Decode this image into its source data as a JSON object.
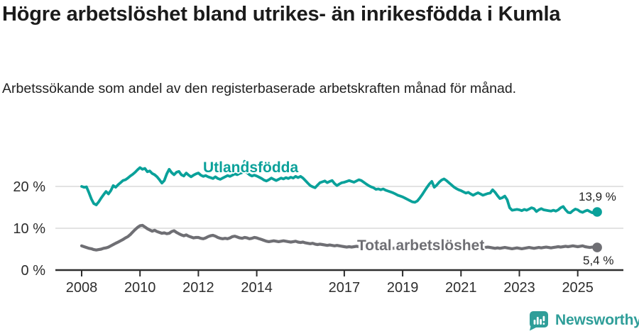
{
  "header": {
    "title": "Högre arbetslöshet bland utrikes- än inrikesfödda i Kumla",
    "subtitle": "Arbetssökande som andel av den registerbaserade arbetskraften månad för månad."
  },
  "footer": {
    "brand": "Newsworthy"
  },
  "colors": {
    "accent_teal": "#0aa19a",
    "series_gray": "#6f6f74",
    "gridline": "#dadada",
    "axis": "#2d2d2d",
    "tick_text": "#2d2d2d",
    "title_text": "#1b1b1b",
    "logo_teal": "#2f9e99"
  },
  "chart_data": {
    "type": "line",
    "title": "Högre arbetslöshet bland utrikes- än inrikesfödda i Kumla",
    "subtitle": "Arbetssökande som andel av den registerbaserade arbetskraften månad för månad.",
    "unit": "%",
    "x_start_year": 2008,
    "points_per_year": 12,
    "x_ticks": [
      2008,
      2010,
      2012,
      2014,
      2017,
      2019,
      2021,
      2023,
      2025
    ],
    "x_tick_labels": [
      "2008",
      "2010",
      "2012",
      "2014",
      "2017",
      "2019",
      "2021",
      "2023",
      "2025"
    ],
    "y_tick_values": [
      0,
      10,
      20
    ],
    "y_tick_labels": [
      "0 %",
      "10 %",
      "20 %"
    ],
    "ylim": [
      0,
      27
    ],
    "grid": "horizontal",
    "legend": "inline-labels",
    "series": [
      {
        "name": "Utlandsfödda",
        "color": "#0aa19a",
        "line_width": 3.8,
        "end_label": "13,9 %",
        "end_value": 13.9,
        "values": [
          20.0,
          19.8,
          19.9,
          18.5,
          17.0,
          15.9,
          15.6,
          16.3,
          17.2,
          18.0,
          18.8,
          18.2,
          19.0,
          20.2,
          19.8,
          20.4,
          20.9,
          21.4,
          21.6,
          22.0,
          22.5,
          22.9,
          23.4,
          24.0,
          24.5,
          24.1,
          24.3,
          23.5,
          23.7,
          23.1,
          22.8,
          22.3,
          21.6,
          20.8,
          21.4,
          23.0,
          24.1,
          23.3,
          22.8,
          23.4,
          23.6,
          22.8,
          22.5,
          23.2,
          22.7,
          22.3,
          22.7,
          23.0,
          23.2,
          22.7,
          22.4,
          22.6,
          22.3,
          22.1,
          21.9,
          22.3,
          21.9,
          21.7,
          22.0,
          22.3,
          22.6,
          22.4,
          22.7,
          23.0,
          22.8,
          23.1,
          23.3,
          26.0,
          23.3,
          22.8,
          22.5,
          22.7,
          22.5,
          22.2,
          21.9,
          21.5,
          21.3,
          21.6,
          22.0,
          21.7,
          21.4,
          21.7,
          22.0,
          21.8,
          22.1,
          21.9,
          22.2,
          22.0,
          22.4,
          22.1,
          22.4,
          22.0,
          21.4,
          20.8,
          20.2,
          19.9,
          19.7,
          20.3,
          20.9,
          21.1,
          21.3,
          20.9,
          21.2,
          21.4,
          20.7,
          20.2,
          20.6,
          20.9,
          21.0,
          21.2,
          21.4,
          21.2,
          21.0,
          21.3,
          21.6,
          21.4,
          21.0,
          20.6,
          20.2,
          19.9,
          19.7,
          19.3,
          19.4,
          19.2,
          19.4,
          19.1,
          18.9,
          18.7,
          18.5,
          18.2,
          17.9,
          17.7,
          17.5,
          17.2,
          16.9,
          16.6,
          16.3,
          16.2,
          16.5,
          17.2,
          18.0,
          18.9,
          19.8,
          20.6,
          21.2,
          19.8,
          20.3,
          21.0,
          21.5,
          21.8,
          21.4,
          20.9,
          20.4,
          19.9,
          19.5,
          19.2,
          19.0,
          18.7,
          18.4,
          18.6,
          18.2,
          17.9,
          18.2,
          18.5,
          18.2,
          17.9,
          18.1,
          18.3,
          18.4,
          19.2,
          18.6,
          17.8,
          17.1,
          17.3,
          17.7,
          16.8,
          14.9,
          14.3,
          14.4,
          14.5,
          14.4,
          14.2,
          14.5,
          14.3,
          14.6,
          14.9,
          14.7,
          14.0,
          14.4,
          14.7,
          14.4,
          14.3,
          14.2,
          14.1,
          14.3,
          14.1,
          14.4,
          14.9,
          15.2,
          14.4,
          13.8,
          13.7,
          14.2,
          14.6,
          14.4,
          14.0,
          13.8,
          14.1,
          14.3,
          14.0,
          13.7,
          14.1,
          13.9
        ]
      },
      {
        "name": "Total arbetslöshet",
        "color": "#6f6f74",
        "line_width": 4.2,
        "end_label": "5,4 %",
        "end_value": 5.4,
        "values": [
          5.8,
          5.6,
          5.4,
          5.2,
          5.1,
          4.9,
          4.8,
          4.9,
          5.0,
          5.2,
          5.3,
          5.5,
          5.8,
          6.1,
          6.4,
          6.7,
          7.0,
          7.3,
          7.7,
          8.0,
          8.5,
          9.1,
          9.7,
          10.2,
          10.6,
          10.7,
          10.3,
          9.9,
          9.6,
          9.3,
          9.5,
          9.2,
          9.0,
          8.8,
          8.9,
          8.7,
          8.8,
          9.2,
          9.4,
          9.0,
          8.7,
          8.4,
          8.2,
          8.4,
          8.1,
          7.9,
          7.7,
          7.8,
          7.8,
          7.6,
          7.5,
          7.7,
          8.0,
          8.2,
          8.3,
          8.1,
          7.8,
          7.6,
          7.5,
          7.6,
          7.5,
          7.7,
          8.0,
          8.1,
          7.9,
          7.7,
          7.6,
          7.8,
          7.7,
          7.5,
          7.6,
          7.8,
          7.7,
          7.5,
          7.3,
          7.1,
          6.9,
          6.8,
          6.9,
          7.0,
          6.9,
          6.8,
          6.9,
          7.0,
          6.9,
          6.8,
          6.7,
          6.8,
          6.9,
          6.7,
          6.6,
          6.7,
          6.5,
          6.4,
          6.3,
          6.4,
          6.2,
          6.1,
          6.2,
          6.1,
          6.0,
          5.9,
          6.0,
          5.9,
          5.8,
          5.9,
          5.8,
          5.7,
          5.6,
          5.5,
          5.6,
          5.5,
          5.6,
          5.7,
          5.6,
          5.5,
          5.4,
          5.5,
          5.6,
          5.5,
          5.4,
          5.5,
          5.4,
          5.3,
          5.4,
          5.5,
          5.4,
          5.3,
          5.2,
          5.3,
          5.4,
          5.3,
          5.2,
          5.3,
          5.4,
          5.5,
          5.6,
          5.7,
          5.8,
          5.7,
          5.8,
          5.9,
          5.8,
          5.7,
          5.8,
          5.9,
          6.1,
          6.3,
          6.4,
          6.5,
          6.4,
          6.3,
          6.2,
          6.1,
          6.0,
          5.9,
          6.0,
          6.1,
          6.0,
          5.9,
          5.8,
          5.7,
          5.8,
          5.7,
          5.6,
          5.5,
          5.4,
          5.5,
          5.4,
          5.3,
          5.2,
          5.3,
          5.2,
          5.3,
          5.4,
          5.3,
          5.2,
          5.1,
          5.2,
          5.3,
          5.2,
          5.1,
          5.2,
          5.3,
          5.4,
          5.3,
          5.2,
          5.3,
          5.4,
          5.3,
          5.4,
          5.5,
          5.4,
          5.3,
          5.4,
          5.5,
          5.6,
          5.5,
          5.6,
          5.7,
          5.6,
          5.7,
          5.8,
          5.7,
          5.6,
          5.7,
          5.8,
          5.6,
          5.5,
          5.4,
          5.5,
          5.4,
          5.4
        ]
      }
    ]
  }
}
